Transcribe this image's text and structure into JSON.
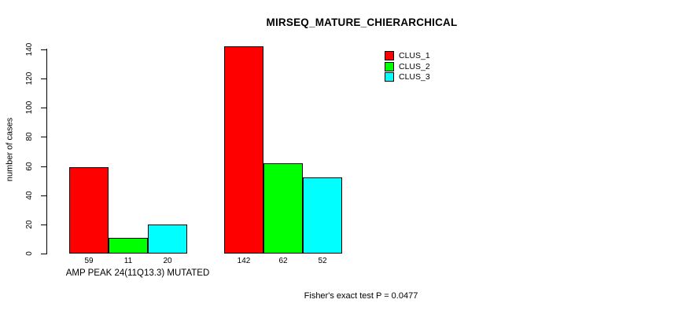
{
  "page": {
    "background": "#ffffff",
    "text_color": "#000000"
  },
  "chart_data": {
    "type": "bar",
    "title": "MIRSEQ_MATURE_CHIERARCHICAL",
    "ylabel": "number of cases",
    "xlabel": "",
    "categories": [
      "AMP PEAK 24(11Q13.3) MUTATED",
      ""
    ],
    "series": [
      {
        "name": "CLUS_1",
        "color": "#ff0000",
        "values": [
          59,
          142
        ]
      },
      {
        "name": "CLUS_2",
        "color": "#00ff00",
        "values": [
          11,
          62
        ]
      },
      {
        "name": "CLUS_3",
        "color": "#00ffff",
        "values": [
          20,
          52
        ]
      }
    ],
    "bar_value_labels": [
      "59",
      "11",
      "20",
      "142",
      "62",
      "52"
    ],
    "yticks": [
      0,
      20,
      40,
      60,
      80,
      100,
      120,
      140
    ],
    "ylim": [
      0,
      140
    ],
    "grid": false,
    "legend_position": "top-right",
    "legend_entries": [
      "CLUS_1",
      "CLUS_2",
      "CLUS_3"
    ],
    "annotation": "Fisher's exact test P = 0.0477",
    "axis_color": "#000000",
    "bar_border_color": "#000000"
  }
}
